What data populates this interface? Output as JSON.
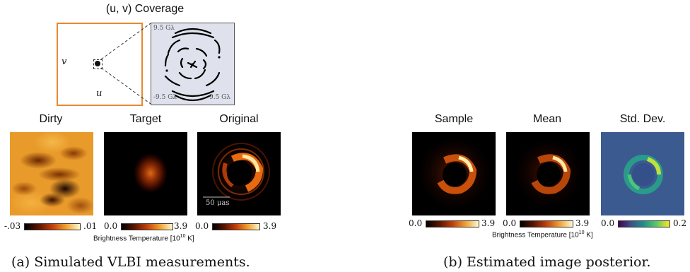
{
  "coverage": {
    "title": "(u, v) Coverage",
    "axis_u": "u",
    "axis_v": "v",
    "inset_top_left": "9.5 Gλ",
    "inset_bottom_left": "-9.5 Gλ",
    "inset_bottom_right": "9.5 Gλ"
  },
  "panel_a": {
    "dirty_title": "Dirty",
    "target_title": "Target",
    "original_title": "Original",
    "scale_bar": "50 μas",
    "dirty_min": "-.03",
    "dirty_max": ".01",
    "target_min": "0.0",
    "target_max": "3.9",
    "original_min": "0.0",
    "original_max": "3.9",
    "brightness_label": "Brightness Temperature [10",
    "brightness_exp": "10",
    "brightness_unit": " K]",
    "caption": "(a) Simulated VLBI measurements."
  },
  "panel_b": {
    "sample_title": "Sample",
    "mean_title": "Mean",
    "std_title": "Std. Dev.",
    "sample_min": "0.0",
    "sample_max": "3.9",
    "mean_min": "0.0",
    "mean_max": "3.9",
    "std_min": "0.0",
    "std_max": "0.2",
    "brightness_label": "Brightness Temperature [10",
    "brightness_exp": "10",
    "brightness_unit": " K]",
    "caption": "(b) Estimated image posterior."
  },
  "colors": {
    "frame": "#e6892f",
    "inset_bg": "#dfe1ec",
    "afmhot_dark": "#000000",
    "afmhot_mid": "#c0400a",
    "afmhot_light": "#fff1a8",
    "viridis_dark": "#3b5a8f",
    "viridis_light": "#f4e51d"
  }
}
